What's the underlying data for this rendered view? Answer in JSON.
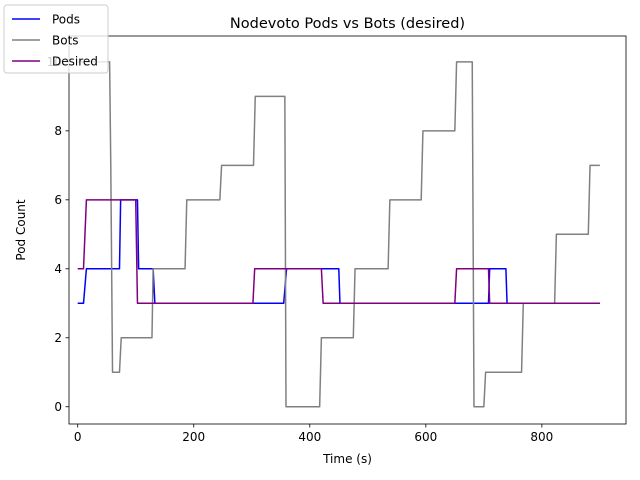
{
  "chart_data": {
    "type": "line",
    "title": "Nodevoto Pods vs Bots (desired)",
    "xlabel": "Time (s)",
    "ylabel": "Pod Count",
    "xlim": [
      -15,
      945
    ],
    "ylim": [
      -0.5,
      10.75
    ],
    "xticks": [
      0,
      200,
      400,
      600,
      800
    ],
    "yticks": [
      0,
      2,
      4,
      6,
      8,
      10
    ],
    "grid": false,
    "legend_position": "top-left",
    "series": [
      {
        "name": "Pods",
        "color": "#0000ff",
        "x": [
          0,
          10,
          15,
          72,
          74,
          103,
          105,
          130,
          133,
          355,
          360,
          450,
          452,
          708,
          710,
          738,
          740,
          900
        ],
        "y": [
          3,
          3,
          4,
          4,
          6,
          6,
          4,
          4,
          3,
          3,
          4,
          4,
          3,
          3,
          4,
          4,
          3,
          3
        ]
      },
      {
        "name": "Bots",
        "color": "#808080",
        "x": [
          0,
          52,
          55,
          57,
          60,
          70,
          72,
          75,
          128,
          130,
          185,
          188,
          245,
          248,
          303,
          306,
          357,
          359,
          417,
          420,
          475,
          478,
          535,
          538,
          592,
          595,
          650,
          653,
          680,
          683,
          700,
          703,
          765,
          768,
          822,
          825,
          880,
          883,
          900
        ],
        "y": [
          10,
          10,
          10,
          7,
          1,
          1,
          1,
          2,
          2,
          4,
          4,
          6,
          6,
          7,
          7,
          9,
          9,
          0,
          0,
          2,
          2,
          4,
          4,
          6,
          6,
          8,
          8,
          10,
          10,
          0,
          0,
          1,
          1,
          3,
          3,
          5,
          5,
          7,
          7
        ]
      },
      {
        "name": "Desired",
        "color": "#800080",
        "x": [
          0,
          10,
          15,
          100,
          103,
          302,
          305,
          420,
          423,
          650,
          653,
          708,
          710,
          900
        ],
        "y": [
          4,
          4,
          6,
          6,
          3,
          3,
          4,
          4,
          3,
          3,
          4,
          4,
          3,
          3
        ]
      }
    ]
  }
}
